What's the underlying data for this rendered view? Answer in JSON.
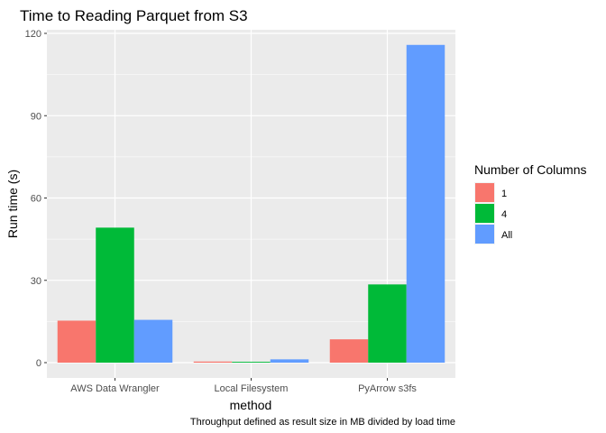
{
  "chart_data": {
    "type": "bar",
    "title": "Time to Reading Parquet from S3",
    "xlabel": "method",
    "ylabel": "Run time (s)",
    "caption": "Throughput defined as result size in MB divided by load time",
    "categories": [
      "AWS Data Wrangler",
      "Local Filesystem",
      "PyArrow s3fs"
    ],
    "legend_title": "Number of Columns",
    "legend_position": "right",
    "series": [
      {
        "name": "1",
        "color": "#F8766D",
        "values": [
          15.3,
          0.4,
          8.5
        ]
      },
      {
        "name": "4",
        "color": "#00BA38",
        "values": [
          49.2,
          0.3,
          28.5
        ]
      },
      {
        "name": "All",
        "color": "#619CFF",
        "values": [
          15.6,
          1.2,
          115.8
        ]
      }
    ],
    "ylim": [
      0,
      120
    ],
    "yticks": [
      0,
      30,
      60,
      90,
      120
    ],
    "grid": true,
    "panel_background": "#EBEBEB",
    "grid_color": "#FFFFFF"
  }
}
